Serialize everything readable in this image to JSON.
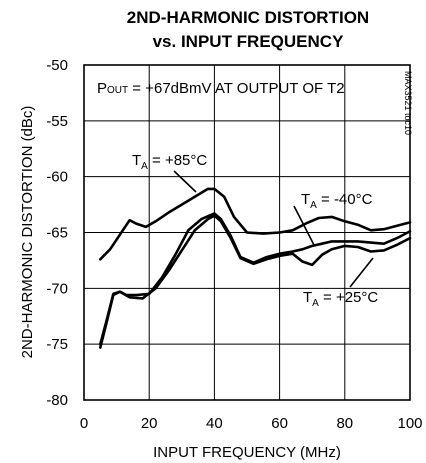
{
  "chart_data": {
    "type": "line",
    "title_line1": "2ND-HARMONIC DISTORTION",
    "title_line2": "vs. INPUT FREQUENCY",
    "xlabel": "INPUT FREQUENCY (MHz)",
    "ylabel": "2ND-HARMONIC DISTORTION (dBc)",
    "xlim": [
      0,
      100
    ],
    "ylim": [
      -80,
      -50
    ],
    "x_ticks": [
      0,
      20,
      40,
      60,
      80,
      100
    ],
    "y_ticks": [
      -50,
      -55,
      -60,
      -65,
      -70,
      -75,
      -80
    ],
    "grid": true,
    "annotation": {
      "prefix": "P",
      "sub": "OUT",
      "rest": " = +67dBmV AT OUTPUT OF T2"
    },
    "part_id": "MAX3521 toc10",
    "series": [
      {
        "name_prefix": "T",
        "name_sub": "A",
        "name_rest": " = +85°C",
        "x": [
          5,
          8,
          11,
          14,
          16,
          19,
          22,
          26,
          30,
          34,
          38,
          40,
          43,
          46,
          50,
          55,
          60,
          64,
          68,
          72,
          76,
          80,
          84,
          88,
          92,
          96,
          100
        ],
        "y": [
          -67.4,
          -66.5,
          -65.2,
          -63.9,
          -64.2,
          -64.5,
          -64.0,
          -63.2,
          -62.5,
          -61.8,
          -61.1,
          -61.1,
          -61.8,
          -63.6,
          -65.0,
          -65.1,
          -65.0,
          -64.8,
          -64.2,
          -63.7,
          -63.6,
          -64.0,
          -64.3,
          -64.8,
          -64.7,
          -64.4,
          -64.1
        ]
      },
      {
        "name_prefix": "T",
        "name_sub": "A",
        "name_rest": " = -40°C",
        "x": [
          5,
          7,
          9,
          11,
          13,
          16,
          20,
          24,
          28,
          32,
          36,
          40,
          42,
          45,
          48,
          52,
          56,
          60,
          64,
          67,
          70,
          73,
          76,
          80,
          84,
          88,
          92,
          96,
          100
        ],
        "y": [
          -75.3,
          -73.0,
          -70.6,
          -70.3,
          -70.6,
          -70.6,
          -70.5,
          -69.0,
          -67.0,
          -64.8,
          -63.8,
          -63.3,
          -63.8,
          -65.3,
          -67.2,
          -67.7,
          -67.2,
          -66.9,
          -66.7,
          -66.5,
          -66.2,
          -66.0,
          -65.8,
          -65.8,
          -65.8,
          -65.9,
          -66.0,
          -65.5,
          -64.9
        ]
      },
      {
        "name_prefix": "T",
        "name_sub": "A",
        "name_rest": " = +25°C",
        "x": [
          5,
          7,
          9,
          11,
          14,
          18,
          22,
          26,
          30,
          34,
          38,
          40,
          42,
          45,
          48,
          52,
          56,
          60,
          64,
          67,
          70,
          73,
          76,
          80,
          84,
          88,
          92,
          96,
          100
        ],
        "y": [
          -75.0,
          -72.8,
          -70.5,
          -70.3,
          -70.8,
          -70.9,
          -70.0,
          -68.4,
          -66.6,
          -64.8,
          -63.8,
          -63.5,
          -64.0,
          -65.5,
          -67.3,
          -67.8,
          -67.4,
          -67.1,
          -66.9,
          -67.6,
          -67.9,
          -67.0,
          -66.5,
          -66.2,
          -66.3,
          -66.7,
          -66.6,
          -66.1,
          -65.5
        ]
      }
    ]
  }
}
